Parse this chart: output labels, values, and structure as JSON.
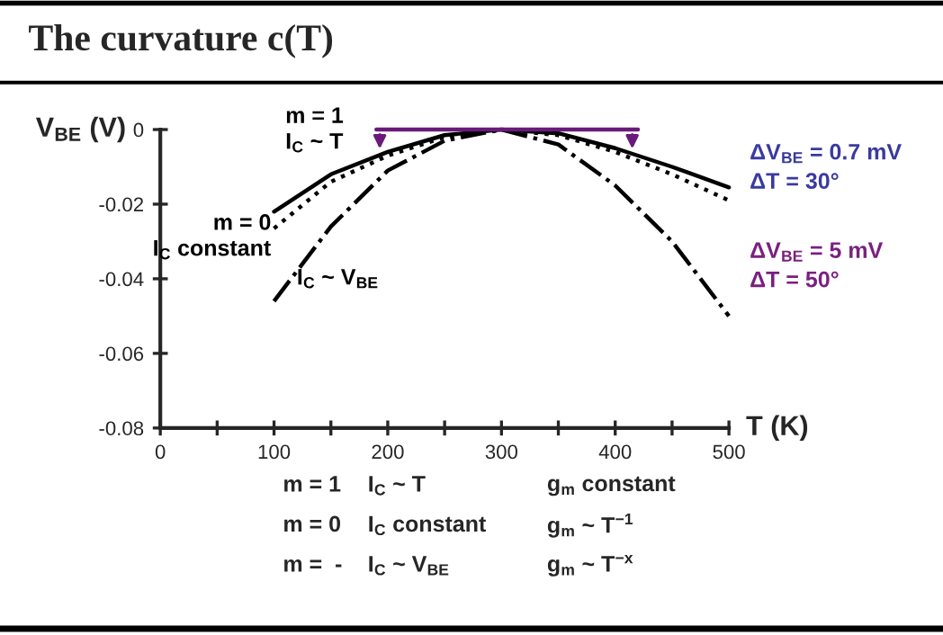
{
  "chart_data": {
    "type": "line",
    "title": "The curvature c(T)",
    "xlabel": "T (K)",
    "ylabel": "V$_{BE}$ (V)",
    "xlim": [
      0,
      500
    ],
    "ylim": [
      -0.08,
      0
    ],
    "xticks": [
      0,
      {
        "value": 50,
        "label": null
      },
      100,
      {
        "value": 150,
        "label": null
      },
      200,
      {
        "value": 250,
        "label": null
      },
      300,
      {
        "value": 350,
        "label": null
      },
      400,
      {
        "value": 450,
        "label": null
      },
      500
    ],
    "yticks": [
      {
        "value": -0.08,
        "label": "-0.08"
      },
      {
        "value": -0.06,
        "label": "-0.06"
      },
      {
        "value": -0.04,
        "label": "-0.04"
      },
      {
        "value": -0.02,
        "label": "-0.02"
      },
      0
    ],
    "grid": false,
    "legend": false,
    "marker": "none",
    "series": [
      {
        "name": "m = 1\nI$_{C}$ ~ T",
        "color": "#000000",
        "line_style": "solid",
        "x": [
          100,
          150,
          200,
          250,
          300,
          350,
          400,
          450,
          500
        ],
        "values": [
          -0.022,
          -0.012,
          -0.006,
          -0.0015,
          0,
          -0.001,
          -0.005,
          -0.01,
          -0.0155
        ]
      },
      {
        "name": "m = 0\nI$_{C}$ constant",
        "color": "#000000",
        "line_style": "dotted",
        "x": [
          100,
          150,
          200,
          250,
          300,
          350,
          400,
          450,
          500
        ],
        "values": [
          -0.0265,
          -0.014,
          -0.007,
          -0.002,
          0,
          -0.0015,
          -0.006,
          -0.012,
          -0.019
        ]
      },
      {
        "name": "I$_{C}$ ~ V$_{BE}$",
        "color": "#000000",
        "line_style": "dashdot",
        "x": [
          100,
          150,
          200,
          250,
          300,
          350,
          400,
          450,
          500
        ],
        "values": [
          -0.046,
          -0.026,
          -0.011,
          -0.003,
          0,
          -0.004,
          -0.015,
          -0.03,
          -0.05
        ]
      },
      {
        "color": "#6a1a7a",
        "line_style": "solid",
        "x": [
          190,
          420
        ],
        "values": [
          0,
          0
        ]
      }
    ],
    "annotations": [
      "ΔV$_{BE}$ = 0.7 mV\nΔT = 30°",
      "ΔV$_{BE}$ = 5 mV\nΔT = 50°",
      "m = 1",
      "I$_{C}$ ~ T",
      "g$_{m}$ constant",
      "m = 0",
      "I$_{C}$ constant",
      "g$_{m}$ ~ T$^{−1}$",
      "m =  -",
      "I$_{C}$ ~ V$_{BE}$",
      "g$_{m}$ ~ T$^{−x}$"
    ]
  }
}
